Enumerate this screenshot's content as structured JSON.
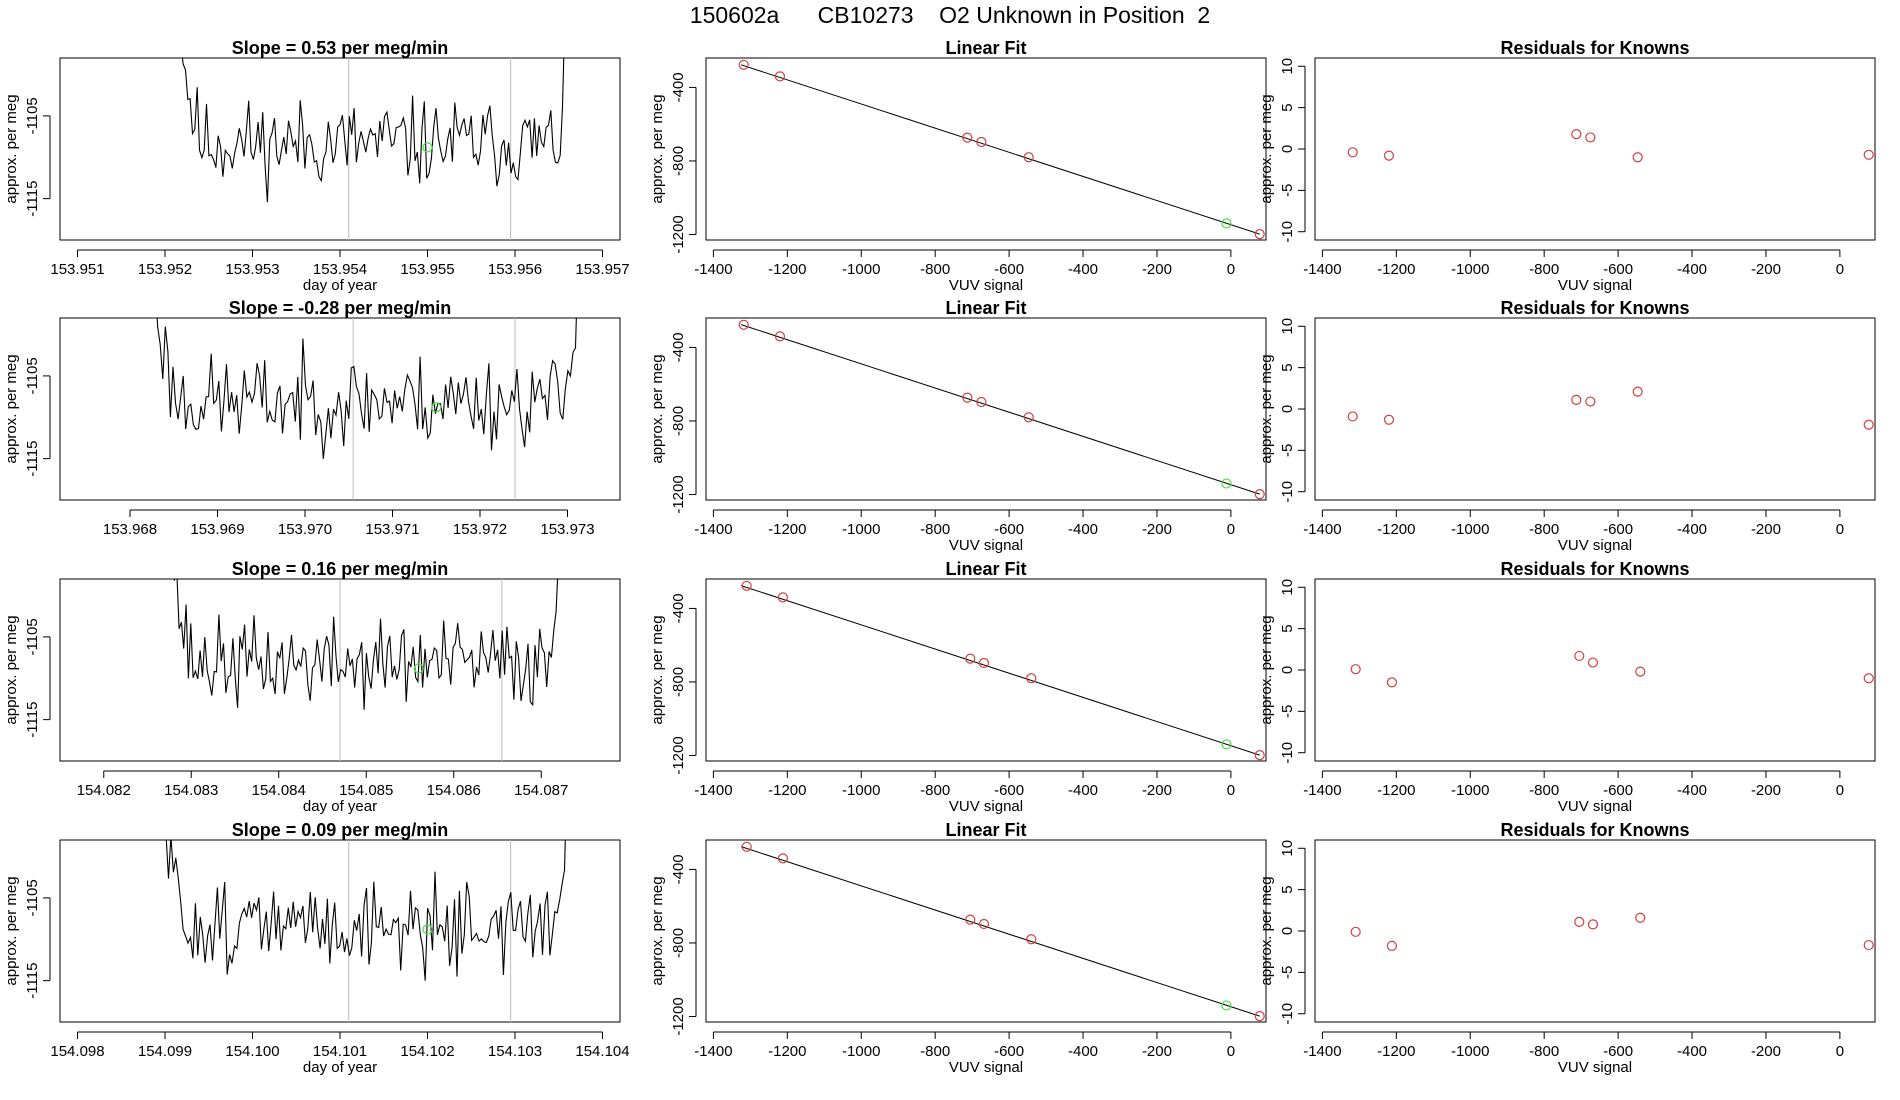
{
  "figure": {
    "title": "150602a      CB10273    O2 Unknown in Position  2",
    "colors": {
      "trace": "#000000",
      "known_point": "#d04040",
      "unknown_point": "#44dd44",
      "vline": "#bbbbbb",
      "fit_line": "#000000"
    }
  },
  "chart_data": [
    {
      "type": "line",
      "name": "row1-time-series",
      "title": "Slope =  0.53  per meg/min",
      "xlabel": "day of year",
      "ylabel": "approx. per meg",
      "xlim": [
        153.9508,
        153.9572
      ],
      "ylim": [
        -1120,
        -1098
      ],
      "xticks": [
        153.951,
        153.952,
        153.953,
        153.954,
        153.955,
        153.956,
        153.957
      ],
      "xtick_labels": [
        "153.951",
        "153.952",
        "153.953",
        "153.954",
        "153.955",
        "153.956",
        "153.957"
      ],
      "yticks": [
        -1105,
        -1115
      ],
      "ytick_labels": [
        "-1105",
        "-1115"
      ],
      "vlines": [
        153.9541,
        153.95595
      ],
      "marker": {
        "x": 153.955,
        "y": -1108.8
      },
      "trace": {
        "x_start": 153.9521,
        "x_end": 153.95665,
        "baseline": -1108.3,
        "amplitude": 2.6,
        "seed": 11
      }
    },
    {
      "type": "scatter",
      "name": "row1-linear-fit",
      "title": "Linear Fit",
      "xlabel": "VUV signal",
      "ylabel": "approx. per meg",
      "xlim": [
        -1420,
        95
      ],
      "ylim": [
        -1230,
        -240
      ],
      "xticks": [
        -1400,
        -1200,
        -1000,
        -800,
        -600,
        -400,
        -200,
        0
      ],
      "xtick_labels": [
        "-1400",
        "-1200",
        "-1000",
        "-800",
        "-600",
        "-400",
        "-200",
        "0"
      ],
      "yticks": [
        -400,
        -800,
        -1200
      ],
      "ytick_labels": [
        "-400",
        "-800",
        "-1200"
      ],
      "fit_line": {
        "x": [
          -1325,
          78
        ],
        "y": [
          -277,
          -1198
        ]
      },
      "knowns": {
        "x": [
          -1318,
          -1220,
          -713,
          -675,
          -547,
          78
        ],
        "y": [
          -277,
          -340,
          -673,
          -697,
          -780,
          -1198
        ]
      },
      "unknown": {
        "x": -12,
        "y": -1140
      }
    },
    {
      "type": "scatter",
      "name": "row1-residuals",
      "title": "Residuals for Knowns",
      "xlabel": "VUV signal",
      "ylabel": "approx. per meg",
      "xlim": [
        -1420,
        95
      ],
      "ylim": [
        -11,
        11
      ],
      "xticks": [
        -1400,
        -1200,
        -1000,
        -800,
        -600,
        -400,
        -200,
        0
      ],
      "xtick_labels": [
        "-1400",
        "-1200",
        "-1000",
        "-800",
        "-600",
        "-400",
        "-200",
        "0"
      ],
      "yticks": [
        10,
        5,
        0,
        -5,
        -10
      ],
      "ytick_labels": [
        "10",
        "5",
        "0",
        "-5",
        "-10"
      ],
      "points": {
        "x": [
          -1318,
          -1220,
          -713,
          -675,
          -547,
          78
        ],
        "y": [
          -0.4,
          -0.8,
          1.8,
          1.4,
          -1.0,
          -0.7
        ]
      }
    },
    {
      "type": "line",
      "name": "row2-time-series",
      "title": "Slope =  -0.28  per meg/min",
      "xlabel": "",
      "ylabel": "approx. per meg",
      "xlim": [
        153.9672,
        153.9736
      ],
      "ylim": [
        -1120,
        -1098
      ],
      "xticks": [
        153.968,
        153.969,
        153.97,
        153.971,
        153.972,
        153.973
      ],
      "xtick_labels": [
        "153.968",
        "153.969",
        "153.970",
        "153.971",
        "153.972",
        "153.973"
      ],
      "yticks": [
        -1105,
        -1115
      ],
      "ytick_labels": [
        "-1105",
        "-1115"
      ],
      "vlines": [
        153.97055,
        153.9724
      ],
      "marker": {
        "x": 153.9715,
        "y": -1108.8
      },
      "trace": {
        "x_start": 153.9682,
        "x_end": 153.97315,
        "baseline": -1108.0,
        "amplitude": 2.7,
        "seed": 23
      }
    },
    {
      "type": "scatter",
      "name": "row2-linear-fit",
      "title": "Linear Fit",
      "xlabel": "VUV signal",
      "ylabel": "approx. per meg",
      "xlim": [
        -1420,
        95
      ],
      "ylim": [
        -1230,
        -240
      ],
      "xticks": [
        -1400,
        -1200,
        -1000,
        -800,
        -600,
        -400,
        -200,
        0
      ],
      "xtick_labels": [
        "-1400",
        "-1200",
        "-1000",
        "-800",
        "-600",
        "-400",
        "-200",
        "0"
      ],
      "yticks": [
        -400,
        -800,
        -1200
      ],
      "ytick_labels": [
        "-400",
        "-800",
        "-1200"
      ],
      "fit_line": {
        "x": [
          -1325,
          78
        ],
        "y": [
          -276,
          -1198
        ]
      },
      "knowns": {
        "x": [
          -1318,
          -1220,
          -713,
          -675,
          -547,
          78
        ],
        "y": [
          -277,
          -340,
          -673,
          -697,
          -780,
          -1198
        ]
      },
      "unknown": {
        "x": -12,
        "y": -1140
      }
    },
    {
      "type": "scatter",
      "name": "row2-residuals",
      "title": "Residuals for Knowns",
      "xlabel": "VUV signal",
      "ylabel": "approx. per meg",
      "xlim": [
        -1420,
        95
      ],
      "ylim": [
        -11,
        11
      ],
      "xticks": [
        -1400,
        -1200,
        -1000,
        -800,
        -600,
        -400,
        -200,
        0
      ],
      "xtick_labels": [
        "-1400",
        "-1200",
        "-1000",
        "-800",
        "-600",
        "-400",
        "-200",
        "0"
      ],
      "yticks": [
        10,
        5,
        0,
        -5,
        -10
      ],
      "ytick_labels": [
        "10",
        "5",
        "0",
        "-5",
        "-10"
      ],
      "points": {
        "x": [
          -1318,
          -1220,
          -713,
          -675,
          -547,
          78
        ],
        "y": [
          -0.9,
          -1.3,
          1.1,
          0.9,
          2.1,
          -1.9
        ]
      }
    },
    {
      "type": "line",
      "name": "row3-time-series",
      "title": "Slope =  0.16  per meg/min",
      "xlabel": "day of year",
      "ylabel": "approx. per meg",
      "xlim": [
        154.0815,
        154.0879
      ],
      "ylim": [
        -1120,
        -1098
      ],
      "xticks": [
        154.082,
        154.083,
        154.084,
        154.085,
        154.086,
        154.087
      ],
      "xtick_labels": [
        "154.082",
        "154.083",
        "154.084",
        "154.085",
        "154.086",
        "154.087"
      ],
      "yticks": [
        -1105,
        -1115
      ],
      "ytick_labels": [
        "-1105",
        "-1115"
      ],
      "vlines": [
        154.0847,
        154.08655
      ],
      "marker": {
        "x": 154.0856,
        "y": -1108.8
      },
      "trace": {
        "x_start": 154.0827,
        "x_end": 154.08725,
        "baseline": -1108.2,
        "amplitude": 2.6,
        "seed": 37
      }
    },
    {
      "type": "scatter",
      "name": "row3-linear-fit",
      "title": "Linear Fit",
      "xlabel": "VUV signal",
      "ylabel": "approx. per meg",
      "xlim": [
        -1420,
        95
      ],
      "ylim": [
        -1230,
        -240
      ],
      "xticks": [
        -1400,
        -1200,
        -1000,
        -800,
        -600,
        -400,
        -200,
        0
      ],
      "xtick_labels": [
        "-1400",
        "-1200",
        "-1000",
        "-800",
        "-600",
        "-400",
        "-200",
        "0"
      ],
      "yticks": [
        -400,
        -800,
        -1200
      ],
      "ytick_labels": [
        "-400",
        "-800",
        "-1200"
      ],
      "fit_line": {
        "x": [
          -1325,
          78
        ],
        "y": [
          -276,
          -1198
        ]
      },
      "knowns": {
        "x": [
          -1310,
          -1212,
          -705,
          -668,
          -540,
          78
        ],
        "y": [
          -277,
          -340,
          -673,
          -697,
          -780,
          -1198
        ]
      },
      "unknown": {
        "x": -12,
        "y": -1140
      }
    },
    {
      "type": "scatter",
      "name": "row3-residuals",
      "title": "Residuals for Knowns",
      "xlabel": "VUV signal",
      "ylabel": "approx. per meg",
      "xlim": [
        -1420,
        95
      ],
      "ylim": [
        -11,
        11
      ],
      "xticks": [
        -1400,
        -1200,
        -1000,
        -800,
        -600,
        -400,
        -200,
        0
      ],
      "xtick_labels": [
        "-1400",
        "-1200",
        "-1000",
        "-800",
        "-600",
        "-400",
        "-200",
        "0"
      ],
      "yticks": [
        10,
        5,
        0,
        -5,
        -10
      ],
      "ytick_labels": [
        "10",
        "5",
        "0",
        "-5",
        "-10"
      ],
      "points": {
        "x": [
          -1310,
          -1212,
          -705,
          -668,
          -540,
          78
        ],
        "y": [
          0.1,
          -1.5,
          1.7,
          0.9,
          -0.2,
          -1.0
        ]
      }
    },
    {
      "type": "line",
      "name": "row4-time-series",
      "title": "Slope =  0.09  per meg/min",
      "xlabel": "day of year",
      "ylabel": "approx. per meg",
      "xlim": [
        154.0978,
        154.1042
      ],
      "ylim": [
        -1120,
        -1098
      ],
      "xticks": [
        154.098,
        154.099,
        154.1,
        154.101,
        154.102,
        154.103,
        154.104
      ],
      "xtick_labels": [
        "154.098",
        "154.099",
        "154.100",
        "154.101",
        "154.102",
        "154.103",
        "154.104"
      ],
      "yticks": [
        -1105,
        -1115
      ],
      "ytick_labels": [
        "-1105",
        "-1115"
      ],
      "vlines": [
        154.1011,
        154.10295
      ],
      "marker": {
        "x": 154.102,
        "y": -1108.8
      },
      "trace": {
        "x_start": 154.0989,
        "x_end": 154.10365,
        "baseline": -1108.3,
        "amplitude": 2.6,
        "seed": 51
      }
    },
    {
      "type": "scatter",
      "name": "row4-linear-fit",
      "title": "Linear Fit",
      "xlabel": "VUV signal",
      "ylabel": "approx. per meg",
      "xlim": [
        -1420,
        95
      ],
      "ylim": [
        -1230,
        -240
      ],
      "xticks": [
        -1400,
        -1200,
        -1000,
        -800,
        -600,
        -400,
        -200,
        0
      ],
      "xtick_labels": [
        "-1400",
        "-1200",
        "-1000",
        "-800",
        "-600",
        "-400",
        "-200",
        "0"
      ],
      "yticks": [
        -400,
        -800,
        -1200
      ],
      "ytick_labels": [
        "-400",
        "-800",
        "-1200"
      ],
      "fit_line": {
        "x": [
          -1325,
          78
        ],
        "y": [
          -276,
          -1198
        ]
      },
      "knowns": {
        "x": [
          -1310,
          -1212,
          -705,
          -668,
          -540,
          78
        ],
        "y": [
          -277,
          -340,
          -673,
          -697,
          -780,
          -1198
        ]
      },
      "unknown": {
        "x": -12,
        "y": -1140
      }
    },
    {
      "type": "scatter",
      "name": "row4-residuals",
      "title": "Residuals for Knowns",
      "xlabel": "VUV signal",
      "ylabel": "approx. per meg",
      "xlim": [
        -1420,
        95
      ],
      "ylim": [
        -11,
        11
      ],
      "xticks": [
        -1400,
        -1200,
        -1000,
        -800,
        -600,
        -400,
        -200,
        0
      ],
      "xtick_labels": [
        "-1400",
        "-1200",
        "-1000",
        "-800",
        "-600",
        "-400",
        "-200",
        "0"
      ],
      "yticks": [
        10,
        5,
        0,
        -5,
        -10
      ],
      "ytick_labels": [
        "10",
        "5",
        "0",
        "-5",
        "-10"
      ],
      "points": {
        "x": [
          -1310,
          -1212,
          -705,
          -668,
          -540,
          78
        ],
        "y": [
          -0.1,
          -1.8,
          1.1,
          0.8,
          1.6,
          -1.7
        ]
      }
    }
  ]
}
